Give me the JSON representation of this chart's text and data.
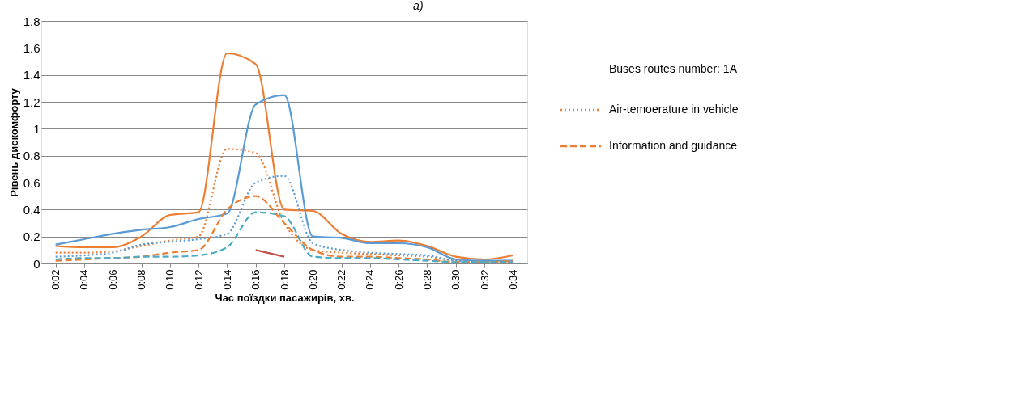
{
  "chart_data": {
    "type": "line",
    "xlabel": "Час поїздки пасажирів, хв.",
    "ylabel": "Рівень дискомфорту",
    "legend_title": "Buses routes number: 1A",
    "legend": "right",
    "grid": "y",
    "annotations": [
      "a)"
    ],
    "categories": [
      "0:02",
      "0:04",
      "0:06",
      "0:08",
      "0:10",
      "0:12",
      "0:14",
      "0:16",
      "0:18",
      "0:20",
      "0:22",
      "0:24",
      "0:26",
      "0:28",
      "0:30",
      "0:32",
      "0:34"
    ],
    "ylim": [
      0,
      1.8
    ],
    "yticks": [
      0,
      0.2,
      0.4,
      0.6,
      0.8,
      1,
      1.2,
      1.4,
      1.6,
      1.8
    ],
    "series": [
      {
        "color": "#ed7d31",
        "line_style": "solid",
        "values": [
          0.13,
          0.12,
          0.12,
          0.2,
          0.36,
          0.38,
          1.56,
          1.48,
          0.4,
          0.39,
          0.22,
          0.16,
          0.17,
          0.13,
          0.05,
          0.03,
          0.06
        ]
      },
      {
        "color": "#5b9bd5",
        "line_style": "solid",
        "values": [
          0.14,
          0.18,
          0.22,
          0.25,
          0.27,
          0.33,
          0.37,
          1.18,
          1.25,
          0.2,
          0.19,
          0.15,
          0.15,
          0.12,
          0.03,
          0.02,
          0.02
        ]
      },
      {
        "name": "Air-temoerature in vehicle",
        "color": "#ed7d31",
        "line_style": "dotted",
        "values": [
          0.08,
          0.08,
          0.09,
          0.13,
          0.17,
          0.2,
          0.85,
          0.82,
          0.3,
          0.1,
          0.08,
          0.07,
          0.06,
          0.05,
          0.02,
          0.01,
          0.01
        ]
      },
      {
        "color": "#5b9bd5",
        "line_style": "dotted",
        "values": [
          0.05,
          0.06,
          0.08,
          0.14,
          0.16,
          0.18,
          0.22,
          0.6,
          0.65,
          0.15,
          0.1,
          0.08,
          0.07,
          0.06,
          0.02,
          0.01,
          0.01
        ]
      },
      {
        "name": "Information and guidance",
        "color": "#ed7d31",
        "line_style": "dashed",
        "values": [
          0.02,
          0.03,
          0.04,
          0.05,
          0.08,
          0.1,
          0.4,
          0.5,
          0.3,
          0.1,
          0.05,
          0.05,
          0.04,
          0.03,
          0.01,
          0.01,
          0.02
        ]
      },
      {
        "color": "#4bacc6",
        "line_style": "dashed",
        "values": [
          0.03,
          0.04,
          0.04,
          0.05,
          0.05,
          0.06,
          0.12,
          0.38,
          0.35,
          0.05,
          0.04,
          0.04,
          0.03,
          0.02,
          0.01,
          0.01,
          0.01
        ]
      },
      {
        "color": "#c0504d",
        "line_style": "solid",
        "values": [
          null,
          null,
          null,
          null,
          null,
          null,
          null,
          0.1,
          0.05,
          null,
          null,
          null,
          null,
          null,
          null,
          null,
          null
        ]
      }
    ]
  }
}
